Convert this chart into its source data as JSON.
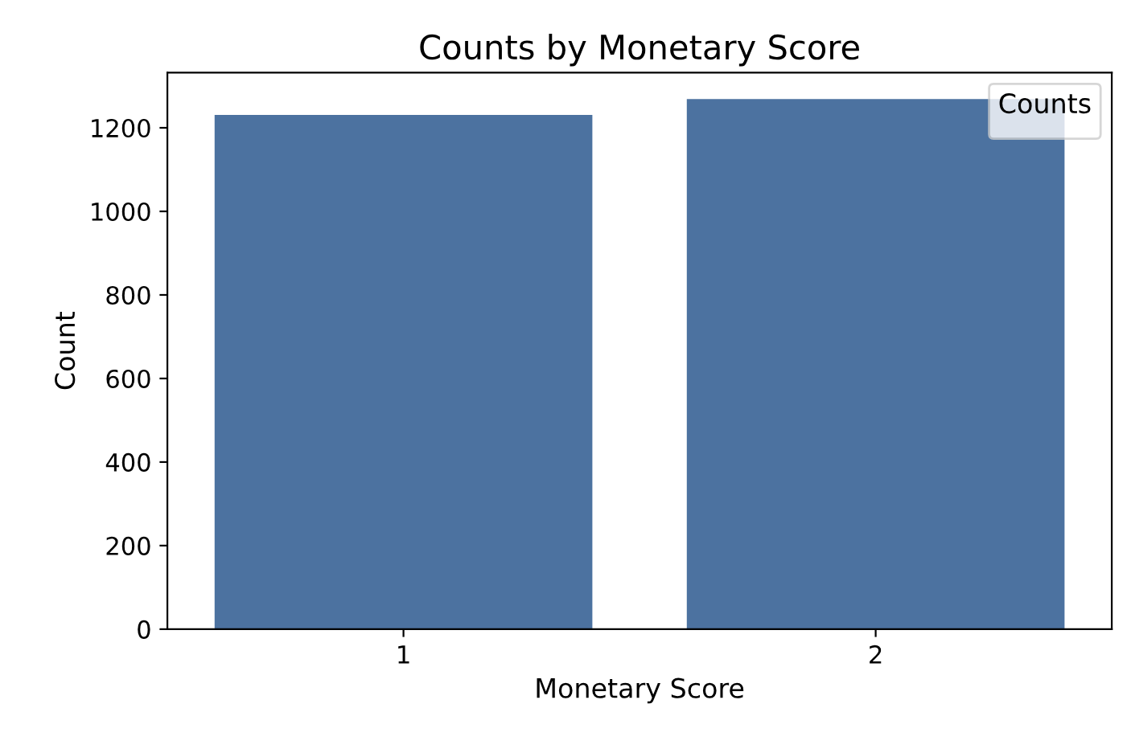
{
  "chart_data": {
    "type": "bar",
    "title": "Counts by Monetary Score",
    "xlabel": "Monetary Score",
    "ylabel": "Count",
    "legend_title": "Counts",
    "categories": [
      "1",
      "2"
    ],
    "values": [
      1231,
      1269
    ],
    "color": "#4c72a0",
    "ylim": [
      0,
      1332
    ],
    "yticks": [
      0,
      200,
      400,
      600,
      800,
      1000,
      1200
    ]
  }
}
